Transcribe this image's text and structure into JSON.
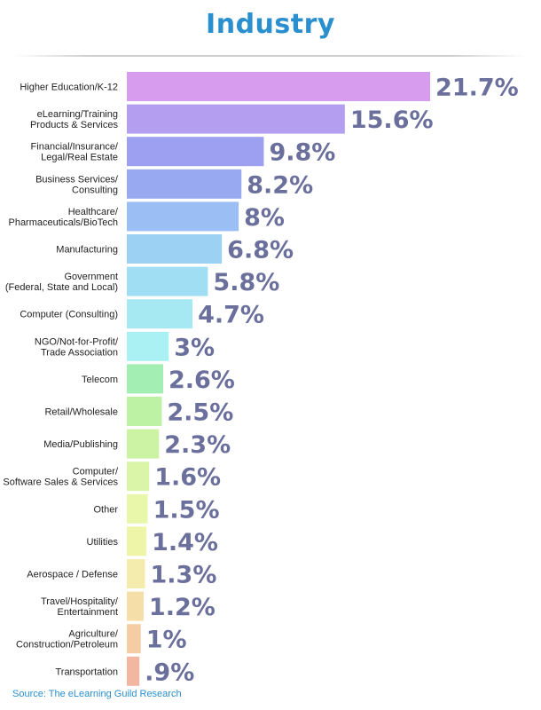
{
  "chart_data": {
    "type": "bar",
    "orientation": "horizontal",
    "title": "Industry",
    "xlabel": "",
    "ylabel": "",
    "xlim": [
      0,
      21.7
    ],
    "grid": false,
    "categories": [
      [
        "Higher Education/K-12"
      ],
      [
        "eLearning/Training",
        "Products & Services"
      ],
      [
        "Financial/Insurance/",
        "Legal/Real Estate"
      ],
      [
        "Business Services/",
        "Consulting"
      ],
      [
        "Healthcare/",
        "Pharmaceuticals/BioTech"
      ],
      [
        "Manufacturing"
      ],
      [
        "Government",
        "(Federal, State and Local)"
      ],
      [
        "Computer (Consulting)"
      ],
      [
        "NGO/Not-for-Profit/",
        "Trade Association"
      ],
      [
        "Telecom"
      ],
      [
        "Retail/Wholesale"
      ],
      [
        "Media/Publishing"
      ],
      [
        "Computer/",
        "Software Sales & Services"
      ],
      [
        "Other"
      ],
      [
        "Utilities"
      ],
      [
        "Aerospace / Defense"
      ],
      [
        "Travel/Hospitality/",
        "Entertainment"
      ],
      [
        "Agriculture/",
        "Construction/Petroleum"
      ],
      [
        "Transportation"
      ]
    ],
    "values": [
      21.7,
      15.6,
      9.8,
      8.2,
      8,
      6.8,
      5.8,
      4.7,
      3,
      2.6,
      2.5,
      2.3,
      1.6,
      1.5,
      1.4,
      1.3,
      1.2,
      1,
      0.9
    ],
    "value_labels": [
      "21.7%",
      "15.6%",
      "9.8%",
      "8.2%",
      "8%",
      "6.8%",
      "5.8%",
      "4.7%",
      "3%",
      "2.6%",
      "2.5%",
      "2.3%",
      "1.6%",
      "1.5%",
      "1.4%",
      "1.3%",
      "1.2%",
      "1%",
      ".9%"
    ],
    "colors": [
      "#d79cee",
      "#b39ef0",
      "#9d9ff0",
      "#98a9f2",
      "#9bbff4",
      "#9dd1f3",
      "#a0dff3",
      "#a6e9f3",
      "#a9f1f3",
      "#a2eeb3",
      "#bdf1a4",
      "#ccf3a4",
      "#dbf5a8",
      "#e9f7aa",
      "#eff5a8",
      "#f4ecac",
      "#f6dea8",
      "#f5cda5",
      "#f3b6a0"
    ]
  },
  "source": "Source: The eLearning Guild Research",
  "colors": {
    "title": "#2a8fce",
    "value_label": "#6b6f9c",
    "category_label": "#222222",
    "source": "#2a8fce"
  }
}
